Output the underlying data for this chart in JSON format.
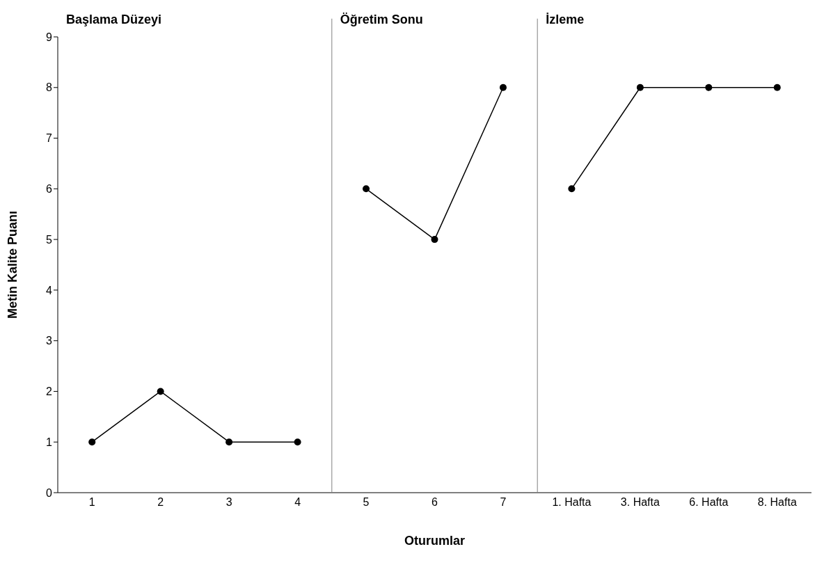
{
  "chart_data": {
    "type": "line",
    "xlabel": "Oturumlar",
    "ylabel": "Metin Kalite Puanı",
    "annotations": [
      "Başlama Düzeyi",
      "Öğretim Sonu",
      "İzleme"
    ],
    "categories": [
      "1",
      "2",
      "3",
      "4",
      "5",
      "6",
      "7",
      "1. Hafta",
      "3. Hafta",
      "6. Hafta",
      "8. Hafta"
    ],
    "series": [
      {
        "color": "#000000",
        "values": [
          1,
          2,
          1,
          1,
          null,
          null,
          null,
          null,
          null,
          null,
          null
        ]
      },
      {
        "color": "#000000",
        "values": [
          null,
          null,
          null,
          null,
          6,
          5,
          8,
          null,
          null,
          null,
          null
        ]
      },
      {
        "color": "#000000",
        "values": [
          null,
          null,
          null,
          null,
          null,
          null,
          null,
          6,
          8,
          8,
          8
        ]
      }
    ],
    "ylim": [
      0,
      9
    ],
    "yticks": [
      0,
      1,
      2,
      3,
      4,
      5,
      6,
      7,
      8,
      9
    ],
    "marker": "circle",
    "line_style": "solid",
    "grid": false
  }
}
